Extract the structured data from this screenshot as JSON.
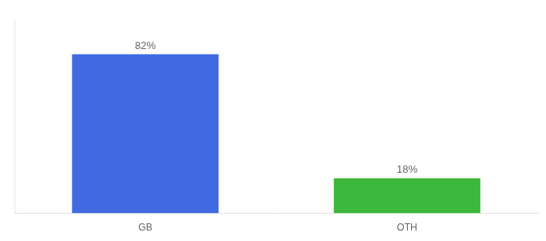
{
  "chart_data": {
    "type": "bar",
    "categories": [
      "GB",
      "OTH"
    ],
    "values": [
      82,
      18
    ],
    "value_labels": [
      "82%",
      "18%"
    ],
    "colors": [
      "#4169e1",
      "#3cb83c"
    ],
    "ylim": [
      0,
      100
    ],
    "data_labels": true,
    "tick_labels": "x",
    "grid": false
  }
}
